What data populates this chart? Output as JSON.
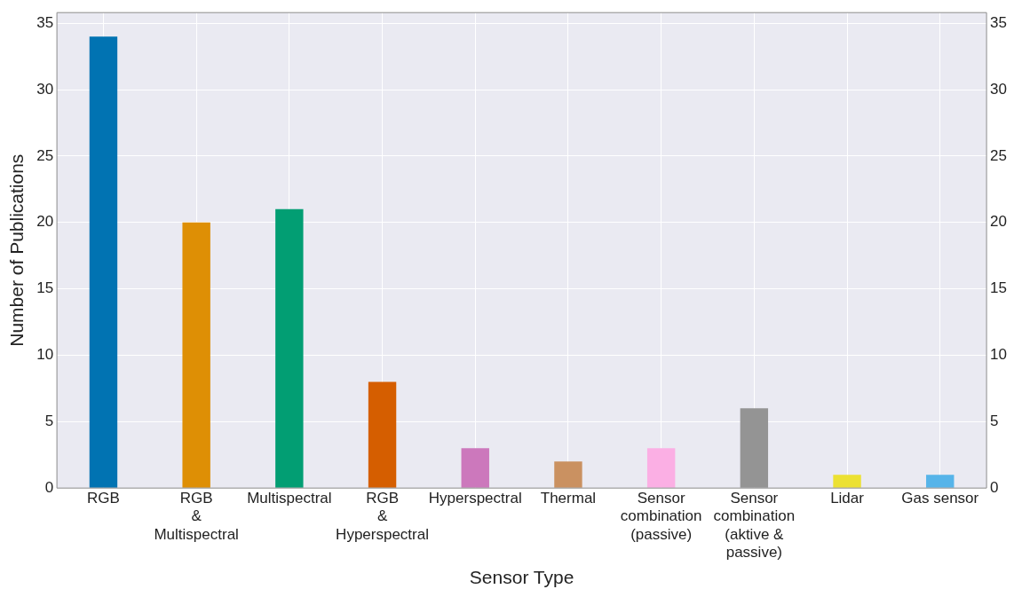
{
  "chart_data": {
    "type": "bar",
    "xlabel": "Sensor Type",
    "ylabel": "Number of Publications",
    "categories": [
      "RGB",
      "RGB\n&\nMultispectral",
      "Multispectral",
      "RGB\n&\nHyperspectral",
      "Hyperspectral",
      "Thermal",
      "Sensor\ncombination\n(passive)",
      "Sensor\ncombination\n(aktive &\npassive)",
      "Lidar",
      "Gas sensor"
    ],
    "values": [
      34,
      20,
      21,
      8,
      3,
      2,
      3,
      6,
      1,
      1
    ],
    "colors": [
      "#0173b2",
      "#de8f05",
      "#029e73",
      "#d55e00",
      "#cc78bc",
      "#ca9161",
      "#fbafe4",
      "#949494",
      "#ece133",
      "#56b4e9"
    ],
    "ylim": [
      0,
      35.8
    ],
    "yticks": [
      0,
      5,
      10,
      15,
      20,
      25,
      30,
      35
    ],
    "y2lim": [
      0,
      35.8
    ],
    "y2ticks": [
      0,
      5,
      10,
      15,
      20,
      25,
      30,
      35
    ],
    "grid": true
  }
}
